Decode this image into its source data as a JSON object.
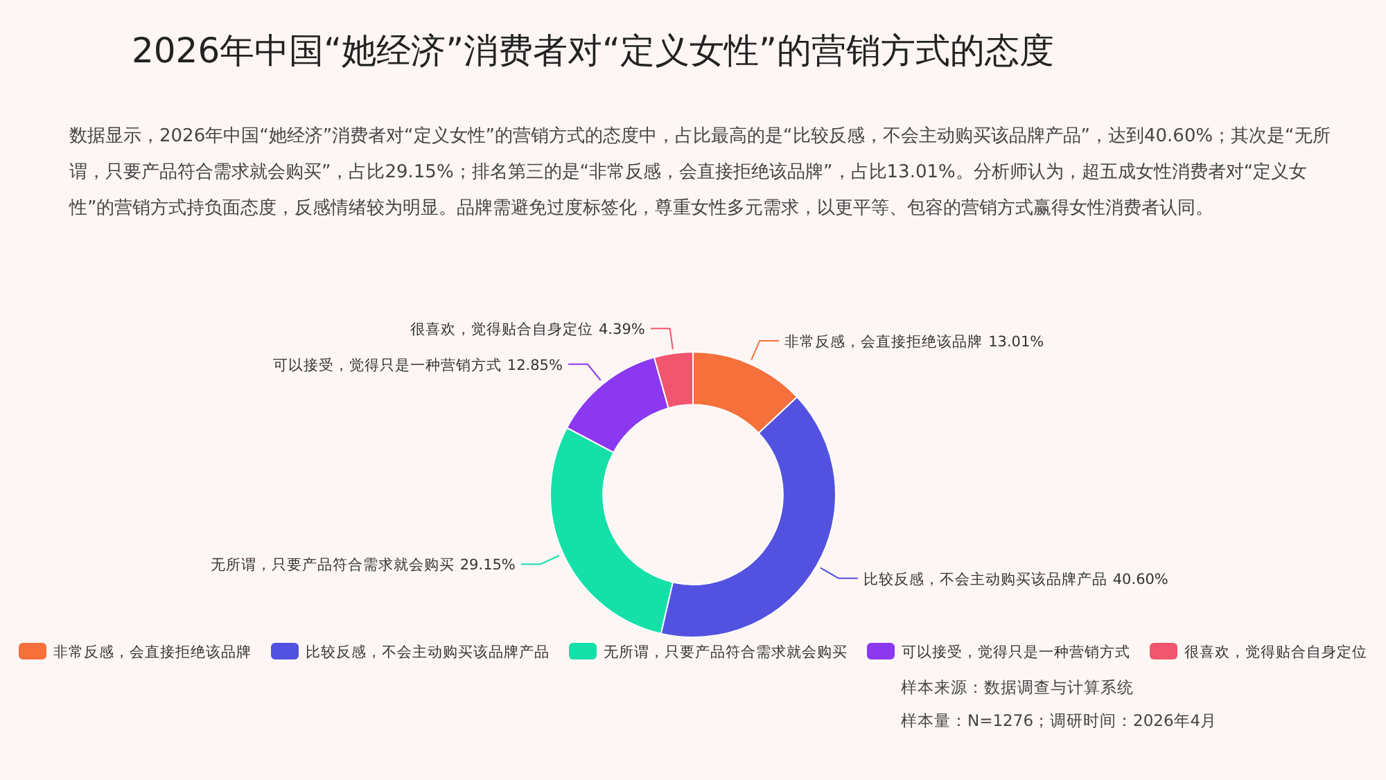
{
  "chart_data": {
    "type": "donut",
    "title": "2026年中国“她经济”消费者对“定义女性”的营销方式的态度",
    "subtitle": "数据显示，2026年中国“她经济”消费者对“定义女性”的营销方式的态度中，占比最高的是“比较反感，不会主动购买该品牌产品”，达到40.60%；其次是“无所谓，只要产品符合需求就会购买”，占比29.15%；排名第三的是“非常反感，会直接拒绝该品牌”，占比13.01%。分析师认为，超五成女性消费者对“定义女性”的营销方式持负面态度，反感情绪较为明显。品牌需避免过度标签化，尊重女性多元需求，以更平等、包容的营销方式赢得女性消费者认同。",
    "categories": [
      "非常反感，会直接拒绝该品牌",
      "比较反感，不会主动购买该品牌产品",
      "无所谓，只要产品符合需求就会购买",
      "可以接受，觉得只是一种营销方式",
      "很喜欢，觉得贴合自身定位"
    ],
    "values": [
      13.01,
      40.6,
      29.15,
      12.85,
      4.39
    ],
    "colors": [
      "#f5703a",
      "#5352e0",
      "#14e0a8",
      "#8c37f0",
      "#f0566e"
    ],
    "value_labels": [
      "13.01%",
      "40.60%",
      "29.15%",
      "12.85%",
      "4.39%"
    ],
    "legend": "bottom",
    "annotations": [
      "样本来源：数据调查与计算系统",
      "样本量：N=1276；调研时间：2026年4月"
    ]
  }
}
